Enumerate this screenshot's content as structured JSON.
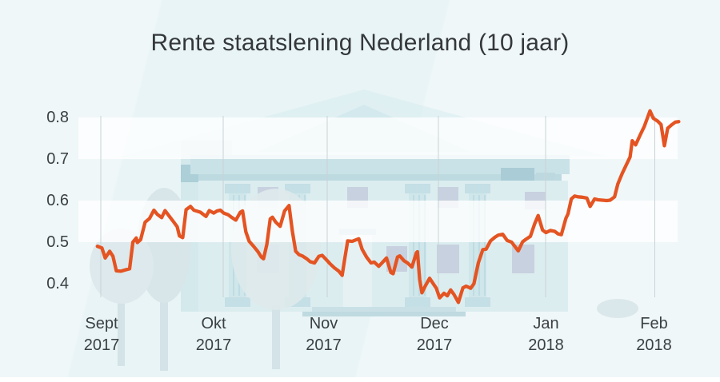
{
  "chart_data": {
    "type": "line",
    "title": "Rente staatslening Nederland (10 jaar)",
    "xlabel": "",
    "ylabel": "",
    "legend": "none",
    "ylim": [
      0.35,
      0.85
    ],
    "y_ticks": [
      "0.8",
      "0.7",
      "0.6",
      "0.5",
      "0.4"
    ],
    "x_ticks": [
      {
        "month": "Sept",
        "year": "2017"
      },
      {
        "month": "Okt",
        "year": "2017"
      },
      {
        "month": "Nov",
        "year": "2017"
      },
      {
        "month": "Dec",
        "year": "2017"
      },
      {
        "month": "Jan",
        "year": "2018"
      },
      {
        "month": "Feb",
        "year": "2018"
      }
    ],
    "grid": {
      "vertical_month_lines": true,
      "horizontal_white_bands": [
        [
          0.7,
          0.8
        ],
        [
          0.5,
          0.6
        ]
      ]
    },
    "series": [
      {
        "name": "Rente staatslening Nederland (10 jaar)",
        "unit": "%",
        "color": "#e45422",
        "x_unit": "months after 1 Sept 2017",
        "points": [
          [
            -0.03,
            0.49
          ],
          [
            0.01,
            0.486
          ],
          [
            0.04,
            0.462
          ],
          [
            0.08,
            0.478
          ],
          [
            0.11,
            0.466
          ],
          [
            0.14,
            0.431
          ],
          [
            0.18,
            0.43
          ],
          [
            0.22,
            0.433
          ],
          [
            0.26,
            0.436
          ],
          [
            0.29,
            0.5
          ],
          [
            0.32,
            0.51
          ],
          [
            0.33,
            0.499
          ],
          [
            0.36,
            0.506
          ],
          [
            0.4,
            0.548
          ],
          [
            0.44,
            0.557
          ],
          [
            0.48,
            0.577
          ],
          [
            0.51,
            0.567
          ],
          [
            0.55,
            0.559
          ],
          [
            0.58,
            0.576
          ],
          [
            0.62,
            0.562
          ],
          [
            0.66,
            0.548
          ],
          [
            0.69,
            0.537
          ],
          [
            0.71,
            0.515
          ],
          [
            0.74,
            0.511
          ],
          [
            0.77,
            0.578
          ],
          [
            0.81,
            0.586
          ],
          [
            0.84,
            0.577
          ],
          [
            0.9,
            0.572
          ],
          [
            0.95,
            0.562
          ],
          [
            0.98,
            0.576
          ],
          [
            1.02,
            0.57
          ],
          [
            1.05,
            0.575
          ],
          [
            1.08,
            0.577
          ],
          [
            1.11,
            0.57
          ],
          [
            1.15,
            0.566
          ],
          [
            1.18,
            0.56
          ],
          [
            1.22,
            0.553
          ],
          [
            1.26,
            0.572
          ],
          [
            1.28,
            0.575
          ],
          [
            1.31,
            0.525
          ],
          [
            1.34,
            0.502
          ],
          [
            1.38,
            0.49
          ],
          [
            1.42,
            0.477
          ],
          [
            1.45,
            0.464
          ],
          [
            1.47,
            0.46
          ],
          [
            1.5,
            0.495
          ],
          [
            1.53,
            0.556
          ],
          [
            1.55,
            0.56
          ],
          [
            1.58,
            0.548
          ],
          [
            1.62,
            0.538
          ],
          [
            1.66,
            0.575
          ],
          [
            1.7,
            0.588
          ],
          [
            1.73,
            0.527
          ],
          [
            1.76,
            0.478
          ],
          [
            1.79,
            0.47
          ],
          [
            1.82,
            0.467
          ],
          [
            1.86,
            0.46
          ],
          [
            1.89,
            0.453
          ],
          [
            1.93,
            0.45
          ],
          [
            1.97,
            0.466
          ],
          [
            2.0,
            0.468
          ],
          [
            2.04,
            0.457
          ],
          [
            2.07,
            0.448
          ],
          [
            2.11,
            0.438
          ],
          [
            2.15,
            0.43
          ],
          [
            2.18,
            0.42
          ],
          [
            2.2,
            0.455
          ],
          [
            2.23,
            0.503
          ],
          [
            2.27,
            0.502
          ],
          [
            2.33,
            0.508
          ],
          [
            2.36,
            0.483
          ],
          [
            2.4,
            0.464
          ],
          [
            2.44,
            0.45
          ],
          [
            2.47,
            0.452
          ],
          [
            2.51,
            0.442
          ],
          [
            2.54,
            0.45
          ],
          [
            2.58,
            0.462
          ],
          [
            2.62,
            0.427
          ],
          [
            2.64,
            0.424
          ],
          [
            2.68,
            0.464
          ],
          [
            2.7,
            0.467
          ],
          [
            2.74,
            0.455
          ],
          [
            2.77,
            0.45
          ],
          [
            2.81,
            0.44
          ],
          [
            2.85,
            0.474
          ],
          [
            2.86,
            0.477
          ],
          [
            2.88,
            0.41
          ],
          [
            2.9,
            0.378
          ],
          [
            2.93,
            0.394
          ],
          [
            2.97,
            0.413
          ],
          [
            3.01,
            0.397
          ],
          [
            3.03,
            0.389
          ],
          [
            3.06,
            0.366
          ],
          [
            3.1,
            0.377
          ],
          [
            3.13,
            0.371
          ],
          [
            3.16,
            0.385
          ],
          [
            3.19,
            0.374
          ],
          [
            3.23,
            0.355
          ],
          [
            3.27,
            0.39
          ],
          [
            3.3,
            0.394
          ],
          [
            3.34,
            0.389
          ],
          [
            3.37,
            0.4
          ],
          [
            3.41,
            0.45
          ],
          [
            3.45,
            0.482
          ],
          [
            3.48,
            0.483
          ],
          [
            3.52,
            0.503
          ],
          [
            3.56,
            0.512
          ],
          [
            3.59,
            0.517
          ],
          [
            3.63,
            0.519
          ],
          [
            3.67,
            0.504
          ],
          [
            3.71,
            0.5
          ],
          [
            3.77,
            0.479
          ],
          [
            3.81,
            0.501
          ],
          [
            3.84,
            0.507
          ],
          [
            3.88,
            0.514
          ],
          [
            3.92,
            0.545
          ],
          [
            3.95,
            0.564
          ],
          [
            3.99,
            0.529
          ],
          [
            4.02,
            0.523
          ],
          [
            4.06,
            0.528
          ],
          [
            4.1,
            0.526
          ],
          [
            4.13,
            0.52
          ],
          [
            4.16,
            0.518
          ],
          [
            4.2,
            0.557
          ],
          [
            4.22,
            0.568
          ],
          [
            4.25,
            0.604
          ],
          [
            4.28,
            0.611
          ],
          [
            4.31,
            0.609
          ],
          [
            4.35,
            0.608
          ],
          [
            4.39,
            0.606
          ],
          [
            4.42,
            0.586
          ],
          [
            4.46,
            0.604
          ],
          [
            4.49,
            0.602
          ],
          [
            4.53,
            0.601
          ],
          [
            4.57,
            0.6
          ],
          [
            4.6,
            0.601
          ],
          [
            4.64,
            0.609
          ],
          [
            4.67,
            0.64
          ],
          [
            4.71,
            0.666
          ],
          [
            4.75,
            0.688
          ],
          [
            4.78,
            0.705
          ],
          [
            4.8,
            0.744
          ],
          [
            4.83,
            0.734
          ],
          [
            4.87,
            0.757
          ],
          [
            4.91,
            0.779
          ],
          [
            4.96,
            0.816
          ],
          [
            4.99,
            0.798
          ],
          [
            5.03,
            0.791
          ],
          [
            5.06,
            0.783
          ],
          [
            5.09,
            0.732
          ],
          [
            5.12,
            0.774
          ],
          [
            5.16,
            0.783
          ],
          [
            5.19,
            0.789
          ],
          [
            5.22,
            0.79
          ]
        ]
      }
    ]
  },
  "style": {
    "background_color": "#e9f4f6",
    "band_color": "rgba(255,255,255,0.78)",
    "gridline_color": "#c9d3d6",
    "text_color": "#3a4043",
    "footer_bar_color": "#ffffff"
  },
  "watermark": {
    "description": "pale classical bank building with pediment, columns and trees"
  }
}
